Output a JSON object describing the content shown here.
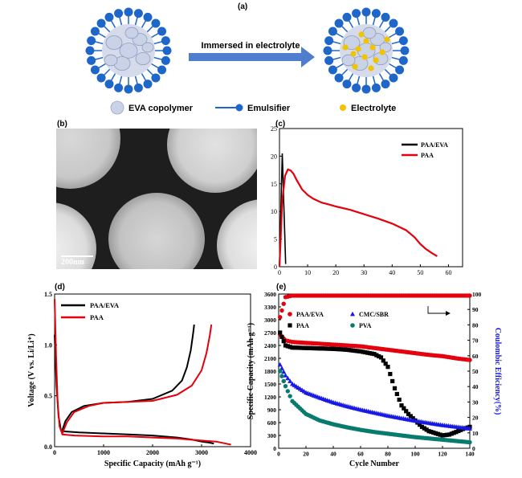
{
  "panels": {
    "a": {
      "label": "(a)",
      "arrow_text": "Immersed in electrolyte",
      "legend": [
        {
          "text": "EVA copolymer",
          "icon": "eva-copolymer-circle"
        },
        {
          "text": "Emulsifier",
          "icon": "emulsifier-molecule"
        },
        {
          "text": "Electrolyte",
          "icon": "electrolyte-dot"
        }
      ]
    },
    "b": {
      "label": "(b)",
      "scale_bar": "200nm"
    },
    "c": {
      "label": "(c)"
    },
    "d": {
      "label": "(d)"
    },
    "e": {
      "label": "(e)"
    }
  },
  "colors": {
    "eva": "#c9d2e6",
    "emulsifier": "#1f66c9",
    "electrolyte": "#f2c300",
    "arrow": "#4f7ecf",
    "paa_eva": "#000000",
    "paa": "#e4000d",
    "cmc_sbr": "#1919e6",
    "pva": "#087a6e"
  },
  "chart_data": [
    {
      "panel": "c",
      "type": "line",
      "xlim": [
        0,
        65
      ],
      "ylim": [
        0,
        25
      ],
      "xticks": [
        0,
        10,
        20,
        30,
        40,
        50,
        60
      ],
      "yticks": [
        0,
        5,
        10,
        15,
        20,
        25
      ],
      "legend": "top-right",
      "series": [
        {
          "name": "PAA/EVA",
          "color": "#000000",
          "x": [
            0,
            1.0,
            2.2
          ],
          "y": [
            0,
            20.5,
            0.5
          ]
        },
        {
          "name": "PAA",
          "color": "#e4000d",
          "x": [
            0,
            1,
            2,
            3,
            4,
            5,
            6,
            8,
            10,
            12,
            15,
            18,
            20,
            25,
            30,
            35,
            40,
            45,
            48,
            50,
            52,
            54,
            56
          ],
          "y": [
            0,
            12,
            16.5,
            17.6,
            17.4,
            16.8,
            15.8,
            14.0,
            13.0,
            12.3,
            11.6,
            11.2,
            10.9,
            10.3,
            9.5,
            8.7,
            7.8,
            6.6,
            5.3,
            4.1,
            3.2,
            2.5,
            1.9
          ]
        }
      ]
    },
    {
      "panel": "d",
      "type": "line",
      "xlabel": "Specific Capacity (mAh g⁻¹)",
      "ylabel": "Voltage (V vs. Li/Li⁺)",
      "xlim": [
        0,
        4000
      ],
      "ylim": [
        0,
        1.5
      ],
      "xticks": [
        0,
        1000,
        2000,
        3000,
        4000
      ],
      "yticks": [
        0.0,
        0.5,
        1.0,
        1.5
      ],
      "legend": "top-left",
      "series": [
        {
          "name": "PAA/EVA",
          "color": "#000000",
          "x": [
            0,
            40,
            80,
            130,
            200,
            500,
            1000,
            1500,
            2000,
            2500,
            2800,
            3000,
            3150,
            3250
          ],
          "y": [
            1.1,
            0.6,
            0.3,
            0.16,
            0.15,
            0.14,
            0.13,
            0.12,
            0.11,
            0.09,
            0.07,
            0.05,
            0.04,
            0.03
          ]
        },
        {
          "name": "PAA/EVA charge",
          "color": "#000000",
          "x": [
            150,
            220,
            350,
            600,
            1000,
            1500,
            2000,
            2400,
            2600,
            2700,
            2780,
            2830,
            2850
          ],
          "y": [
            0.15,
            0.25,
            0.34,
            0.4,
            0.43,
            0.44,
            0.47,
            0.55,
            0.65,
            0.78,
            0.95,
            1.12,
            1.2
          ]
        },
        {
          "name": "PAA",
          "color": "#e4000d",
          "x": [
            0,
            30,
            60,
            100,
            160,
            400,
            1000,
            1500,
            2000,
            2500,
            3000,
            3300,
            3500,
            3600
          ],
          "y": [
            1.45,
            0.9,
            0.45,
            0.2,
            0.12,
            0.11,
            0.1,
            0.1,
            0.09,
            0.08,
            0.06,
            0.05,
            0.03,
            0.02
          ]
        },
        {
          "name": "PAA charge",
          "color": "#e4000d",
          "x": [
            150,
            250,
            400,
            700,
            1000,
            1500,
            2000,
            2500,
            2800,
            3000,
            3100,
            3170,
            3200
          ],
          "y": [
            0.12,
            0.24,
            0.34,
            0.4,
            0.43,
            0.44,
            0.45,
            0.51,
            0.6,
            0.75,
            0.92,
            1.1,
            1.2
          ]
        }
      ]
    },
    {
      "panel": "e",
      "type": "scatter",
      "xlabel": "Cycle Number",
      "ylabel": "Specific Capacity (mAh g⁻¹)",
      "y2label": "Coulombic Efficiency(%)",
      "xlim": [
        0,
        140
      ],
      "ylim": [
        0,
        3600
      ],
      "y2lim": [
        0,
        100
      ],
      "xticks": [
        0,
        20,
        40,
        60,
        80,
        100,
        120,
        140
      ],
      "yticks": [
        0,
        300,
        600,
        900,
        1200,
        1500,
        1800,
        2100,
        2400,
        2700,
        3000,
        3300,
        3600
      ],
      "y2ticks": [
        0,
        10,
        20,
        30,
        40,
        50,
        60,
        70,
        80,
        90,
        100
      ],
      "legend": "top-left",
      "series": [
        {
          "name": "PAA/EVA",
          "color": "#e4000d",
          "marker": "circle",
          "x": [
            1,
            5,
            10,
            20,
            30,
            40,
            50,
            60,
            70,
            80,
            90,
            100,
            110,
            120,
            130,
            140
          ],
          "y": [
            2650,
            2520,
            2480,
            2460,
            2440,
            2420,
            2400,
            2380,
            2340,
            2300,
            2260,
            2220,
            2180,
            2150,
            2100,
            2060
          ]
        },
        {
          "name": "PAA",
          "color": "#000000",
          "marker": "square",
          "x": [
            1,
            5,
            10,
            20,
            30,
            40,
            50,
            60,
            65,
            70,
            75,
            80,
            85,
            90,
            95,
            100,
            105,
            110,
            115,
            120,
            125,
            130,
            135,
            140
          ],
          "y": [
            2700,
            2400,
            2350,
            2340,
            2330,
            2320,
            2300,
            2260,
            2230,
            2200,
            2120,
            1900,
            1400,
            1000,
            800,
            650,
            500,
            400,
            350,
            300,
            320,
            380,
            450,
            500
          ]
        },
        {
          "name": "CMC/SBR",
          "color": "#1919e6",
          "marker": "triangle",
          "x": [
            1,
            5,
            10,
            20,
            30,
            40,
            50,
            60,
            70,
            80,
            90,
            100,
            110,
            120,
            130,
            140
          ],
          "y": [
            1950,
            1700,
            1500,
            1300,
            1180,
            1070,
            980,
            900,
            830,
            760,
            700,
            640,
            590,
            540,
            500,
            460
          ]
        },
        {
          "name": "PVA",
          "color": "#087a6e",
          "marker": "circle",
          "x": [
            1,
            5,
            10,
            20,
            30,
            40,
            50,
            60,
            70,
            80,
            90,
            100,
            110,
            120,
            130,
            140
          ],
          "y": [
            1800,
            1450,
            1100,
            800,
            650,
            560,
            490,
            430,
            380,
            340,
            300,
            260,
            230,
            200,
            170,
            140
          ]
        },
        {
          "name": "Coulombic efficiency",
          "axis": "y2",
          "color": "#e4000d",
          "marker": "circle",
          "x": [
            1,
            5,
            10,
            20,
            30,
            40,
            50,
            60,
            70,
            80,
            90,
            100,
            110,
            120,
            130,
            140
          ],
          "y": [
            85,
            98,
            99,
            99,
            99,
            99,
            99,
            99,
            99,
            99,
            99,
            99,
            99,
            99,
            99,
            99
          ]
        }
      ]
    }
  ]
}
